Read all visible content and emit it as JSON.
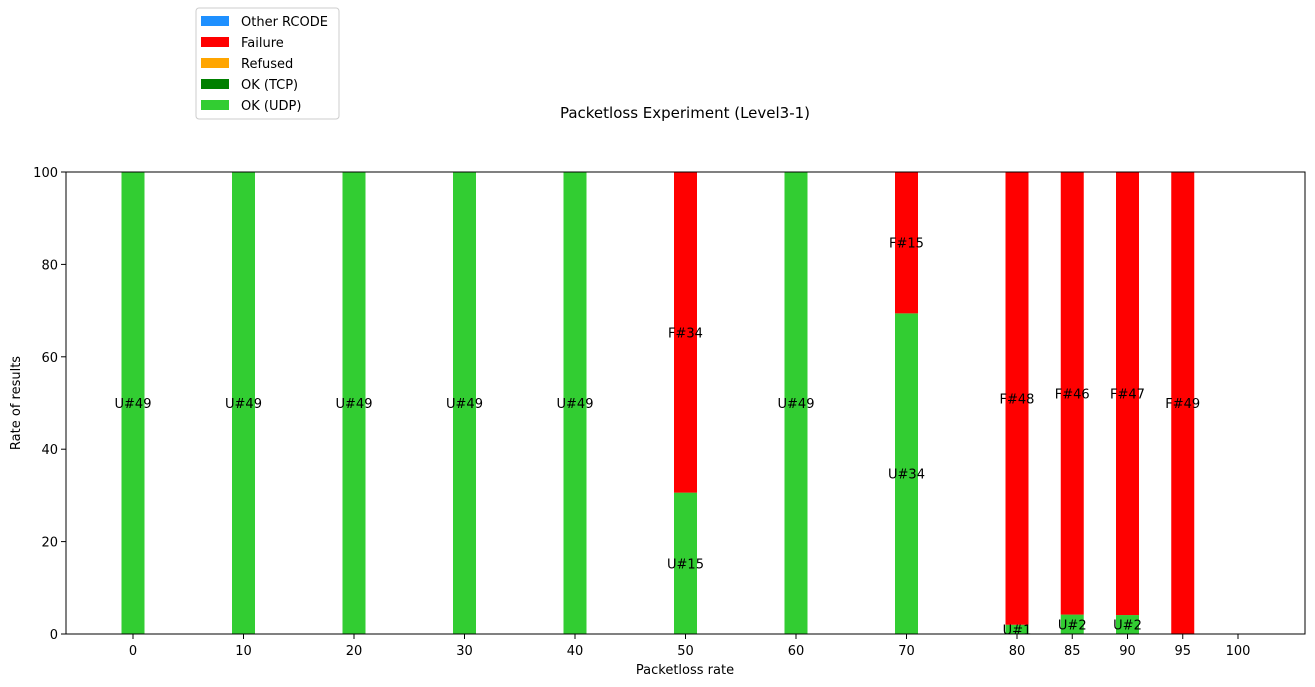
{
  "chart_data": {
    "type": "bar",
    "stacked": true,
    "title": "Packetloss Experiment (Level3-1)",
    "xlabel": "Packetloss rate",
    "ylabel": "Rate of results",
    "ylim": [
      0,
      100
    ],
    "yticks": [
      0,
      20,
      40,
      60,
      80,
      100
    ],
    "grid": false,
    "legend_placement": "top-left, outside plot",
    "categories": [
      "0",
      "10",
      "20",
      "30",
      "40",
      "50",
      "60",
      "70",
      "80",
      "85",
      "90",
      "95",
      "100"
    ],
    "series": [
      {
        "name": "OK (UDP)",
        "color": "#32cd32",
        "values": [
          100,
          100,
          100,
          100,
          100,
          30.6,
          100,
          69.4,
          2.0,
          4.2,
          4.1,
          0,
          0
        ],
        "labels": [
          "U#49",
          "U#49",
          "U#49",
          "U#49",
          "U#49",
          "U#15",
          "U#49",
          "U#34",
          "U#1",
          "U#2",
          "U#2",
          "",
          ""
        ]
      },
      {
        "name": "OK (TCP)",
        "color": "#008000",
        "values": [
          0,
          0,
          0,
          0,
          0,
          0,
          0,
          0,
          0,
          0,
          0,
          0,
          0
        ],
        "labels": [
          "",
          "",
          "",
          "",
          "",
          "",
          "",
          "",
          "",
          "",
          "",
          "",
          ""
        ]
      },
      {
        "name": "Refused",
        "color": "#ffa500",
        "values": [
          0,
          0,
          0,
          0,
          0,
          0,
          0,
          0,
          0,
          0,
          0,
          0,
          0
        ],
        "labels": [
          "",
          "",
          "",
          "",
          "",
          "",
          "",
          "",
          "",
          "",
          "",
          "",
          ""
        ]
      },
      {
        "name": "Failure",
        "color": "#ff0000",
        "values": [
          0,
          0,
          0,
          0,
          0,
          69.4,
          0,
          30.6,
          98.0,
          95.8,
          95.9,
          100,
          0
        ],
        "labels": [
          "",
          "",
          "",
          "",
          "",
          "F#34",
          "",
          "F#15",
          "F#48",
          "F#46",
          "F#47",
          "F#49",
          ""
        ]
      },
      {
        "name": "Other RCODE",
        "color": "#1e90ff",
        "values": [
          0,
          0,
          0,
          0,
          0,
          0,
          0,
          0,
          0,
          0,
          0,
          0,
          0
        ],
        "labels": [
          "",
          "",
          "",
          "",
          "",
          "",
          "",
          "",
          "",
          "",
          "",
          "",
          ""
        ]
      }
    ],
    "legend_order": [
      "Other RCODE",
      "Failure",
      "Refused",
      "OK (TCP)",
      "OK (UDP)"
    ]
  }
}
